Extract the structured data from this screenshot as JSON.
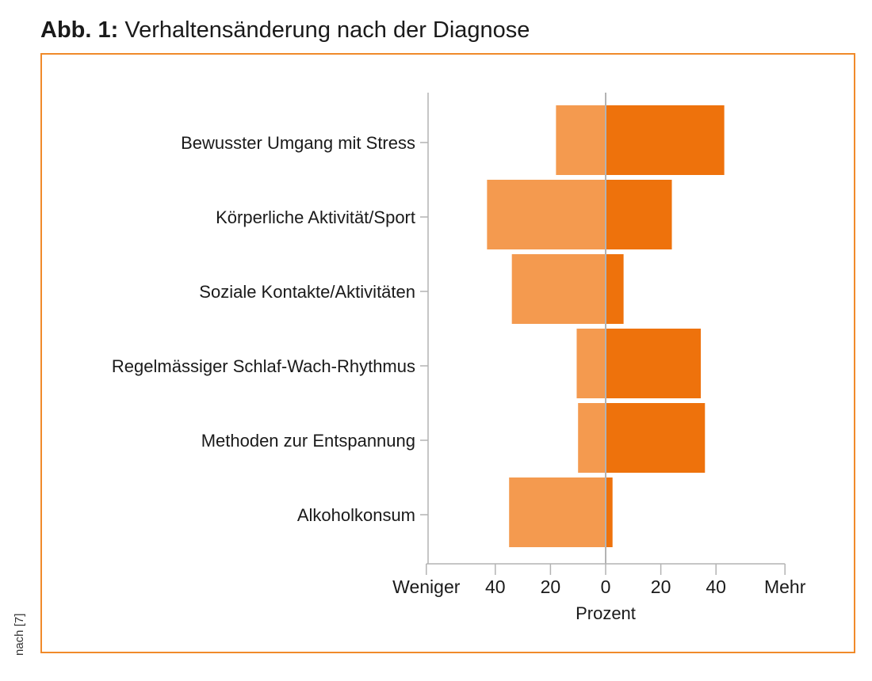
{
  "figure": {
    "label": "Abb. 1:",
    "title": "Verhaltensänderung nach der Diagnose",
    "source_note": "nach [7]"
  },
  "colors": {
    "less": "#f49a4f",
    "more": "#ee720c",
    "frame": "#f08a2a",
    "axis": "#b3b3b3"
  },
  "chart_data": {
    "type": "bar",
    "orientation": "horizontal-diverging",
    "categories": [
      "Bewusster Umgang mit Stress",
      "Körperliche Aktivität/Sport",
      "Soziale Kontakte/Aktivitäten",
      "Regelmässiger Schlaf-Wach-Rhythmus",
      "Methoden zur Entspannung",
      "Alkoholkonsum"
    ],
    "series": [
      {
        "values": [
          18,
          43,
          34,
          10.5,
          10,
          35
        ]
      },
      {
        "values": [
          43,
          24,
          6.5,
          34.5,
          36,
          2.5
        ]
      }
    ],
    "xlabel": "Prozent",
    "xlim": [
      -65,
      65
    ],
    "xticks": [
      -40,
      -20,
      0,
      20,
      40
    ],
    "xtick_labels": [
      "40",
      "20",
      "0",
      "20",
      "40"
    ],
    "left_end_label": "Weniger",
    "right_end_label": "Mehr",
    "grid": false
  }
}
